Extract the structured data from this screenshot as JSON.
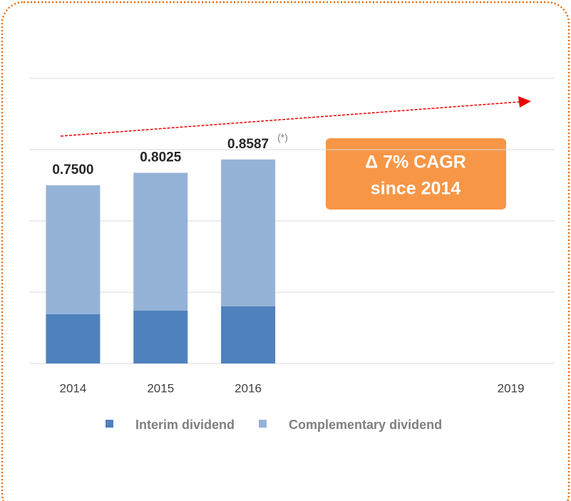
{
  "chart_data": {
    "type": "stacked_bar",
    "categories": [
      "2014",
      "2015",
      "2016",
      null,
      null,
      "2019"
    ],
    "series": [
      {
        "name": "Interim dividend",
        "color": "#4f81bd",
        "values": [
          0.207,
          0.222,
          0.24,
          null,
          null,
          null
        ]
      },
      {
        "name": "Complementary dividend",
        "color": "#95b3d7",
        "values": [
          0.543,
          0.5805,
          0.6187,
          null,
          null,
          null
        ]
      }
    ],
    "total_labels": [
      "0.7500",
      "0.8025",
      "0.8587",
      null,
      null,
      null
    ],
    "annotations": {
      "note": "(*)",
      "cagr_line1": "Δ 7% CAGR",
      "cagr_line2": "since 2014"
    },
    "ylim": [
      0,
      1.2
    ],
    "yticks": [
      0,
      0.3,
      0.6,
      0.9,
      1.2
    ],
    "grid": true,
    "legend": "bottom"
  }
}
